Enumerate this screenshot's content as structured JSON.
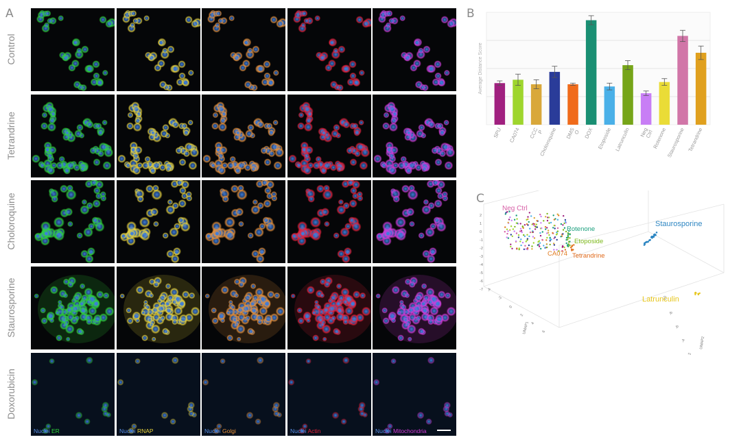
{
  "panels": {
    "a": "A",
    "b": "B",
    "c": "C"
  },
  "rows": [
    {
      "label": "Control"
    },
    {
      "label": "Tetrandrine"
    },
    {
      "label": "Choloroquine"
    },
    {
      "label": "Staurosporine"
    },
    {
      "label": "Doxorubicin"
    }
  ],
  "channels": [
    {
      "nuclei": "Nuclei",
      "name": "ER",
      "color": "#2fd43a"
    },
    {
      "nuclei": "Nuclei",
      "name": "RNAP",
      "color": "#e8d23a"
    },
    {
      "nuclei": "Nuclei",
      "name": "Golgi",
      "color": "#e8913a"
    },
    {
      "nuclei": "Nuclei",
      "name": "Actin",
      "color": "#e8203a"
    },
    {
      "nuclei": "Nuclei",
      "name": "Mitochondria",
      "color": "#d23ad8"
    }
  ],
  "nuclei_color": "#3d7ee0",
  "chart_data": [
    {
      "type": "bar",
      "ylabel": "Average Distance Score",
      "categories": [
        "SPU",
        "CA074",
        "CCC P",
        "Choloroquine",
        "DMS O",
        "DOX",
        "Etoposide",
        "Latrunculin",
        "Neg Ctrl",
        "Rotenone",
        "Staurosporine",
        "Tetrandrine"
      ],
      "category_labels": [
        "SPU",
        "CA074",
        "CCC\nP",
        "Choloroquine",
        "DMS\nO",
        "DOX",
        "Etoposide",
        "Latrunculin",
        "Neg\nCtrl",
        "Rotenone",
        "Staurosporine",
        "Tetrandrine"
      ],
      "values": [
        0.37,
        0.4,
        0.36,
        0.47,
        0.36,
        0.93,
        0.34,
        0.53,
        0.28,
        0.38,
        0.79,
        0.64
      ],
      "errors": [
        0.02,
        0.05,
        0.04,
        0.05,
        0.01,
        0.04,
        0.03,
        0.04,
        0.02,
        0.03,
        0.05,
        0.06
      ],
      "colors": [
        "#a0207f",
        "#9ed52d",
        "#d9a83a",
        "#2a3c99",
        "#f06b1b",
        "#1a8f73",
        "#4ab0e8",
        "#76a518",
        "#c87ef5",
        "#eadc37",
        "#d176a8",
        "#e0a01e"
      ],
      "ylim": [
        0,
        1.0
      ],
      "grid": true
    },
    {
      "type": "scatter",
      "title": "",
      "axis_labels": {
        "x": "UMAP1",
        "y": "UMAP2",
        "z": "UMAP3"
      },
      "z_ticks": [
        "2",
        "1",
        "0",
        "-1",
        "-2",
        "-3",
        "-4",
        "-5",
        "-6",
        "-7"
      ],
      "x_ticks": [
        "-4",
        "-2",
        "0",
        "2",
        "4",
        "6"
      ],
      "y_ticks": [
        "-10",
        "-8",
        "-6",
        "-4",
        "-2"
      ],
      "series": [
        {
          "name": "Neg Ctrl",
          "color": "#d75fa6"
        },
        {
          "name": "Rotenone",
          "color": "#1a9f7d"
        },
        {
          "name": "Etoposide",
          "color": "#7cb81a"
        },
        {
          "name": "CA074",
          "color": "#e07b20"
        },
        {
          "name": "Tetrandrine",
          "color": "#e06a1b"
        },
        {
          "name": "Staurosporine",
          "color": "#2e86c2"
        },
        {
          "name": "Latrunculin",
          "color": "#e6c51a"
        }
      ]
    }
  ]
}
